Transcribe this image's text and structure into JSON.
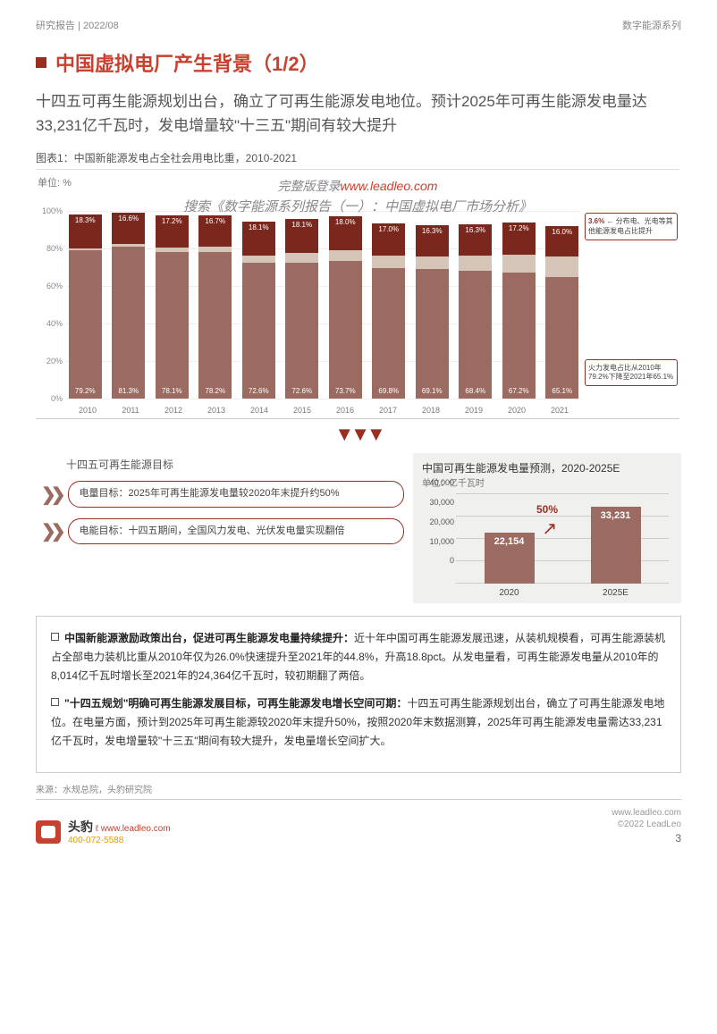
{
  "header": {
    "left": "研究报告  |  2022/08",
    "right": "数字能源系列"
  },
  "title": "中国虚拟电厂产生背景（1/2）",
  "subtitle": "十四五可再生能源规划出台，确立了可再生能源发电地位。预计2025年可再生能源发电量达33,231亿千瓦时，发电增量较\"十三五\"期间有较大提升",
  "chart1": {
    "caption": "图表1：中国新能源发电占全社会用电比重，2010-2021",
    "unit": "单位: %",
    "wm1_prefix": "完整版登录",
    "wm1_link": "www.leadleo.com",
    "wm2": "搜索《数字能源系列报告（一）：中国虚拟电厂市场分析》",
    "yticks": [
      0,
      20,
      40,
      60,
      80,
      100
    ],
    "colors": {
      "bot": "#9b6a60",
      "mid": "#d4c5b8",
      "top": "#7a281e",
      "grid": "#eee"
    },
    "cats": [
      "2010",
      "2011",
      "2012",
      "2013",
      "2014",
      "2015",
      "2016",
      "2017",
      "2018",
      "2019",
      "2020",
      "2021"
    ],
    "data": [
      {
        "bot": 79.2,
        "mid": 1.0,
        "top": 18.3
      },
      {
        "bot": 81.3,
        "mid": 1.5,
        "top": 16.6
      },
      {
        "bot": 78.1,
        "mid": 2.5,
        "top": 17.2
      },
      {
        "bot": 78.2,
        "mid": 3.0,
        "top": 16.7
      },
      {
        "bot": 72.6,
        "mid": 4.0,
        "top": 18.1
      },
      {
        "bot": 72.6,
        "mid": 5.0,
        "top": 18.1
      },
      {
        "bot": 73.7,
        "mid": 5.5,
        "top": 18.0
      },
      {
        "bot": 69.8,
        "mid": 6.5,
        "top": 17.0
      },
      {
        "bot": 69.1,
        "mid": 7.0,
        "top": 16.3
      },
      {
        "bot": 68.4,
        "mid": 8.2,
        "top": 16.3
      },
      {
        "bot": 67.2,
        "mid": 9.8,
        "top": 17.2
      },
      {
        "bot": 65.1,
        "mid": 10.9,
        "top": 16.0
      }
    ],
    "ann_top": "分布电、光电等其他能源发电占比提升",
    "ann_top_val": "3.6%",
    "ann_bot": "火力发电占比从2010年79.2%下降至2021年65.1%"
  },
  "targets": {
    "title": "十四五可再生能源目标",
    "t1": "电量目标：2025年可再生能源发电量较2020年末提升约50%",
    "t2": "电能目标：十四五期间，全国风力发电、光伏发电量实现翻倍"
  },
  "chart2": {
    "title": "中国可再生能源发电量预测，2020-2025E",
    "unit": "单位：亿千瓦时",
    "ymax": 40000,
    "yticks": [
      0,
      10000,
      20000,
      30000,
      40000
    ],
    "colors": {
      "bar": "#9b6a60",
      "grid": "#ccc",
      "accent": "#9b2e21"
    },
    "cats": [
      "2020",
      "2025E"
    ],
    "values": [
      22154,
      33231
    ],
    "labels": [
      "22,154",
      "33,231"
    ],
    "growth": "50%"
  },
  "body": {
    "p1_bold": "中国新能源激励政策出台，促进可再生能源发电量持续提升：",
    "p1": "近十年中国可再生能源发展迅速，从装机规模看，可再生能源装机占全部电力装机比重从2010年仅为26.0%快速提升至2021年的44.8%，升高18.8pct。从发电量看，可再生能源发电量从2010年的8,014亿千瓦时增长至2021年的24,364亿千瓦时，较初期翻了两倍。",
    "p2_bold": "\"十四五规划\"明确可再生能源发展目标，可再生能源发电增长空间可期：",
    "p2": "十四五可再生能源规划出台，确立了可再生能源发电地位。在电量方面，预计到2025年可再生能源较2020年末提升50%，按照2020年末数据测算，2025年可再生能源发电量需达33,231亿千瓦时，发电增量较\"十三五\"期间有较大提升，发电量增长空间扩大。"
  },
  "source": "来源：水规总院，头豹研究院",
  "footer": {
    "brand": "头豹",
    "url": "www.leadleo.com",
    "tel": "400-072-5588",
    "right1": "www.leadleo.com",
    "right2": "©2022 LeadLeo",
    "page": "3"
  }
}
